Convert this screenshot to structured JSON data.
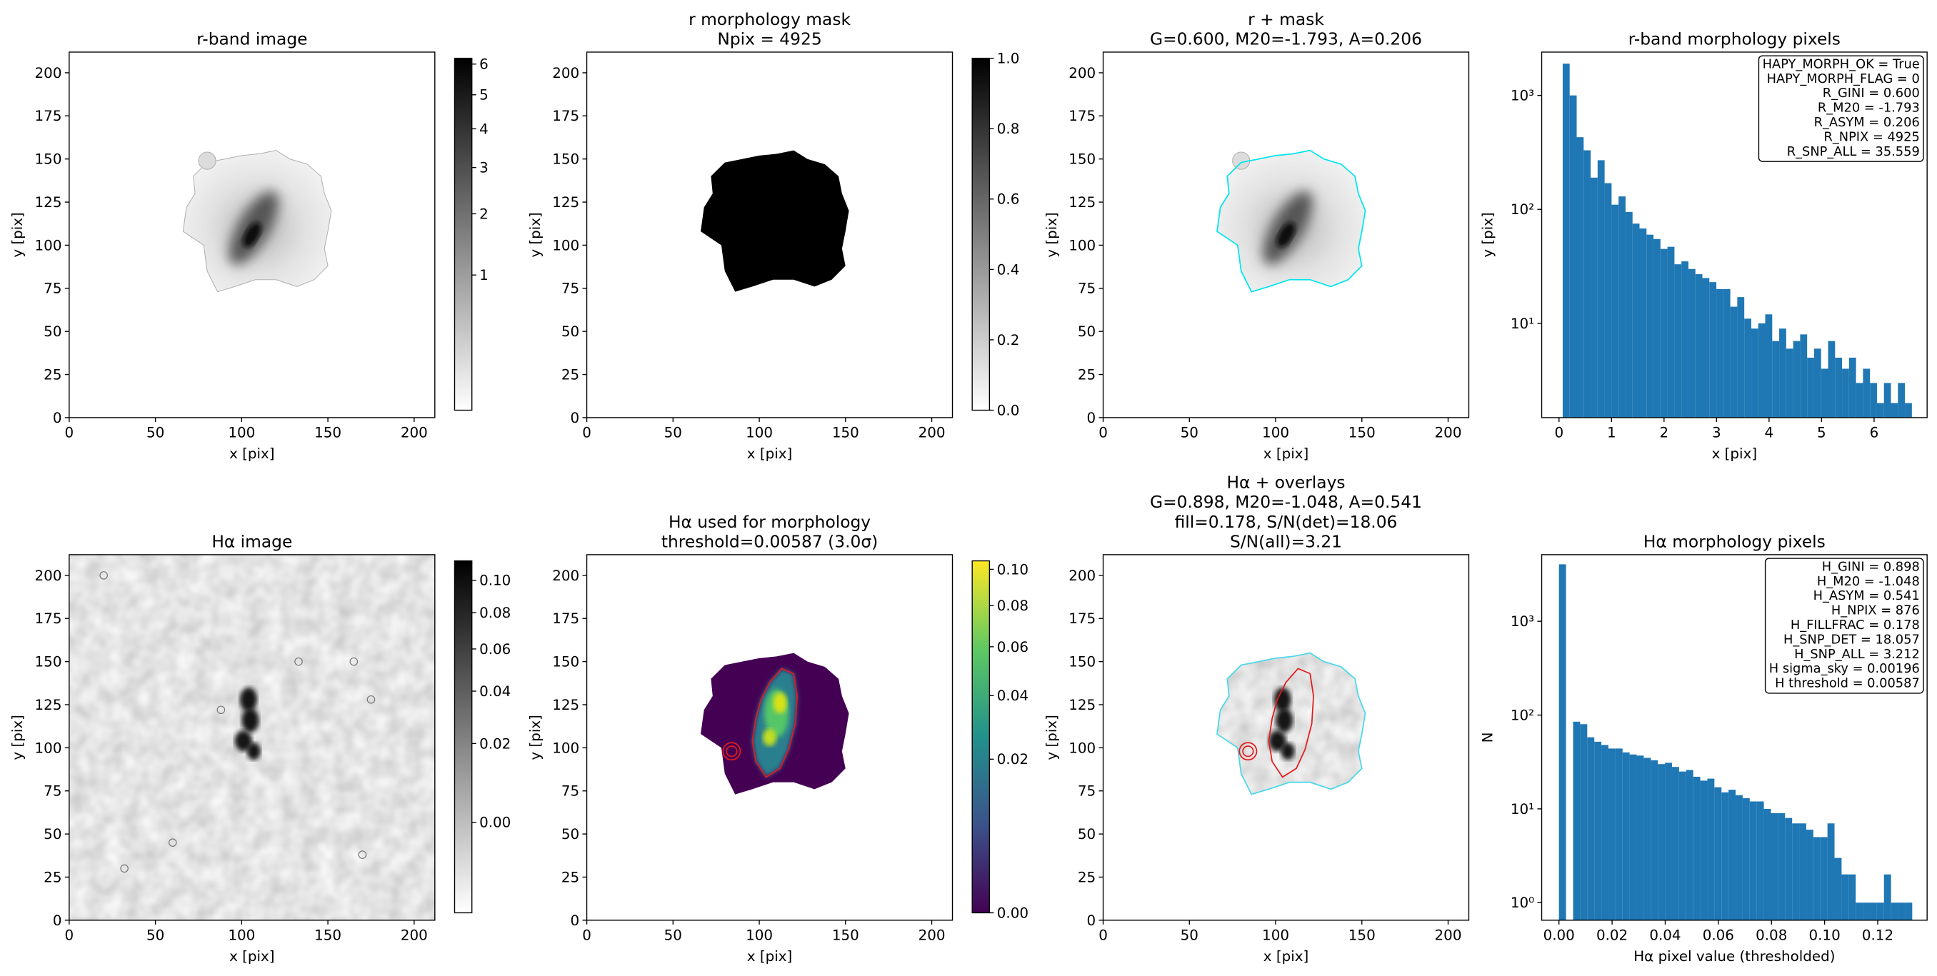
{
  "chart_data": [
    {
      "type": "image",
      "title": [
        "r-band image"
      ],
      "xlabel": "x [pix]",
      "ylabel": "y [pix]",
      "xlim": [
        0,
        212
      ],
      "xticks": [
        0,
        50,
        100,
        150,
        200
      ],
      "ylim": [
        0,
        212
      ],
      "yticks": [
        0,
        25,
        50,
        75,
        100,
        125,
        150,
        175,
        200
      ],
      "cmap": "gray_r",
      "colorbar": {
        "clim": [
          0.1,
          6.2
        ],
        "scale": "sqrt",
        "ticks": [
          1,
          2,
          3,
          4,
          5,
          6
        ]
      }
    },
    {
      "type": "image",
      "title": [
        "r morphology mask",
        "Npix = 4925"
      ],
      "xlabel": "x [pix]",
      "ylabel": "y [pix]",
      "xlim": [
        0,
        212
      ],
      "xticks": [
        0,
        50,
        100,
        150,
        200
      ],
      "ylim": [
        0,
        212
      ],
      "yticks": [
        0,
        25,
        50,
        75,
        100,
        125,
        150,
        175,
        200
      ],
      "cmap": "gray_r",
      "colorbar": {
        "clim": [
          0,
          1
        ],
        "scale": "linear",
        "ticks": [
          {
            "value": 0,
            "label": "0.0"
          },
          0.2,
          0.4,
          0.6,
          0.8,
          {
            "value": 1,
            "label": "1.0"
          }
        ]
      }
    },
    {
      "type": "image",
      "title": [
        "r + mask",
        "G=0.600, M20=-1.793, A=0.206"
      ],
      "xlabel": "x [pix]",
      "ylabel": "y [pix]",
      "xlim": [
        0,
        212
      ],
      "xticks": [
        0,
        50,
        100,
        150,
        200
      ],
      "ylim": [
        0,
        212
      ],
      "yticks": [
        0,
        25,
        50,
        75,
        100,
        125,
        150,
        175,
        200
      ],
      "cmap": "gray_r"
    },
    {
      "type": "histogram",
      "title": [
        "r-band morphology pixels"
      ],
      "xlabel": "x [pix]",
      "ylabel": "y [pix]",
      "color": "#1f77b4",
      "yscale": "log",
      "xlim": [
        -0.33,
        7.01
      ],
      "xticks": [
        0,
        1,
        2,
        3,
        4,
        5,
        6
      ],
      "ylim": [
        1.49,
        2400
      ],
      "yticks": [
        {
          "value": 10,
          "label": "10¹"
        },
        {
          "value": 100,
          "label": "10²"
        },
        {
          "value": 1000,
          "label": "10³"
        }
      ],
      "bins": [
        0.07,
        0.203,
        0.336,
        0.469,
        0.602,
        0.735,
        0.868,
        1.001,
        1.134,
        1.267,
        1.4,
        1.533,
        1.666,
        1.799,
        1.932,
        2.065,
        2.198,
        2.331,
        2.464,
        2.597,
        2.73,
        2.863,
        2.996,
        3.129,
        3.262,
        3.395,
        3.528,
        3.661,
        3.794,
        3.927,
        4.06,
        4.193,
        4.326,
        4.459,
        4.592,
        4.725,
        4.858,
        4.991,
        5.124,
        5.257,
        5.39,
        5.523,
        5.656,
        5.789,
        5.922,
        6.055,
        6.188,
        6.321,
        6.454,
        6.587,
        6.72
      ],
      "values": [
        1900,
        1000,
        430,
        330,
        190,
        270,
        170,
        110,
        130,
        95,
        75,
        68,
        60,
        55,
        45,
        47,
        33,
        35,
        30,
        27,
        25,
        23,
        20,
        20,
        14,
        17,
        11,
        9,
        10,
        12,
        7,
        9,
        6,
        7,
        8,
        5,
        6,
        4,
        7,
        5,
        4,
        5,
        3,
        4,
        3,
        2,
        3,
        2,
        3,
        2
      ],
      "annotation": [
        "HAPY_MORPH_OK = True",
        "HAPY_MORPH_FLAG = 0",
        "R_GINI = 0.600",
        "R_M20 = -1.793",
        "R_ASYM = 0.206",
        "R_NPIX = 4925",
        "R_SNP_ALL = 35.559"
      ]
    },
    {
      "type": "image",
      "title": [
        "Hα image"
      ],
      "xlabel": "x [pix]",
      "ylabel": "y [pix]",
      "xlim": [
        0,
        212
      ],
      "xticks": [
        0,
        50,
        100,
        150,
        200
      ],
      "ylim": [
        0,
        212
      ],
      "yticks": [
        0,
        25,
        50,
        75,
        100,
        125,
        150,
        175,
        200
      ],
      "cmap": "gray_r",
      "colorbar": {
        "clim": [
          -0.008,
          0.113
        ],
        "scale": "sqrt",
        "ticks": [
          {
            "value": 0,
            "label": "0.00"
          },
          0.02,
          0.04,
          0.06,
          0.08,
          {
            "value": 0.1,
            "label": "0.10"
          }
        ]
      }
    },
    {
      "type": "image",
      "title": [
        "Hα used for morphology",
        "threshold=0.00587 (3.0σ)"
      ],
      "xlabel": "x [pix]",
      "ylabel": "y [pix]",
      "xlim": [
        0,
        212
      ],
      "xticks": [
        0,
        50,
        100,
        150,
        200
      ],
      "ylim": [
        0,
        212
      ],
      "yticks": [
        0,
        25,
        50,
        75,
        100,
        125,
        150,
        175,
        200
      ],
      "cmap": "viridis",
      "colorbar": {
        "clim": [
          0,
          0.105
        ],
        "scale": "sqrt",
        "ticks": [
          {
            "value": 0,
            "label": "0.00"
          },
          0.02,
          0.04,
          0.06,
          0.08,
          {
            "value": 0.1,
            "label": "0.10"
          }
        ]
      }
    },
    {
      "type": "image",
      "title": [
        "Hα + overlays",
        "G=0.898, M20=-1.048, A=0.541",
        "fill=0.178, S/N(det)=18.06",
        "S/N(all)=3.21"
      ],
      "xlabel": "x [pix]",
      "ylabel": "y [pix]",
      "xlim": [
        0,
        212
      ],
      "xticks": [
        0,
        50,
        100,
        150,
        200
      ],
      "ylim": [
        0,
        212
      ],
      "yticks": [
        0,
        25,
        50,
        75,
        100,
        125,
        150,
        175,
        200
      ],
      "cmap": "gray_r"
    },
    {
      "type": "histogram",
      "title": [
        "Hα morphology pixels"
      ],
      "xlabel": "Hα pixel value (thresholded)",
      "ylabel": "N",
      "color": "#1f77b4",
      "yscale": "log",
      "xlim": [
        -0.0065,
        0.1386
      ],
      "xticks": [
        {
          "value": 0,
          "label": "0.00"
        },
        0.02,
        0.04,
        0.06,
        0.08,
        {
          "value": 0.1,
          "label": "0.10"
        },
        0.12
      ],
      "ylim": [
        0.65,
        5130
      ],
      "yticks": [
        {
          "value": 1,
          "label": "10⁰"
        },
        {
          "value": 10,
          "label": "10¹"
        },
        {
          "value": 100,
          "label": "10²"
        },
        {
          "value": 1000,
          "label": "10³"
        }
      ],
      "bins": [
        0,
        0.00266,
        0.00532,
        0.00798,
        0.01064,
        0.0133,
        0.01596,
        0.01862,
        0.02128,
        0.02394,
        0.0266,
        0.02926,
        0.03192,
        0.03458,
        0.03724,
        0.0399,
        0.04256,
        0.04522,
        0.04788,
        0.05054,
        0.0532,
        0.05586,
        0.05852,
        0.06118,
        0.06384,
        0.0665,
        0.06916,
        0.07182,
        0.07448,
        0.07714,
        0.0798,
        0.08246,
        0.08512,
        0.08778,
        0.09044,
        0.0931,
        0.09576,
        0.09842,
        0.10108,
        0.10374,
        0.1064,
        0.10906,
        0.11172,
        0.11438,
        0.11704,
        0.1197,
        0.12236,
        0.12502,
        0.12768,
        0.13034,
        0.133
      ],
      "values": [
        4049,
        0,
        85,
        80,
        58,
        52,
        48,
        44,
        44,
        40,
        38,
        37,
        35,
        33,
        30,
        31,
        28,
        25,
        26,
        22,
        20,
        21,
        17,
        15,
        16,
        14,
        13,
        12,
        12,
        10,
        9,
        9,
        8,
        7,
        7,
        6,
        5,
        5,
        7,
        3,
        2,
        2,
        1,
        1,
        1,
        1,
        2,
        1,
        1,
        1
      ],
      "annotation": [
        "H_GINI = 0.898",
        "H_M20 = -1.048",
        "H_ASYM = 0.541",
        "H_NPIX = 876",
        "H_FILLFRAC = 0.178",
        "H_SNP_DET = 18.057",
        "H_SNP_ALL = 3.212",
        "H sigma_sky = 0.00196",
        "H threshold = 0.00587"
      ]
    }
  ]
}
